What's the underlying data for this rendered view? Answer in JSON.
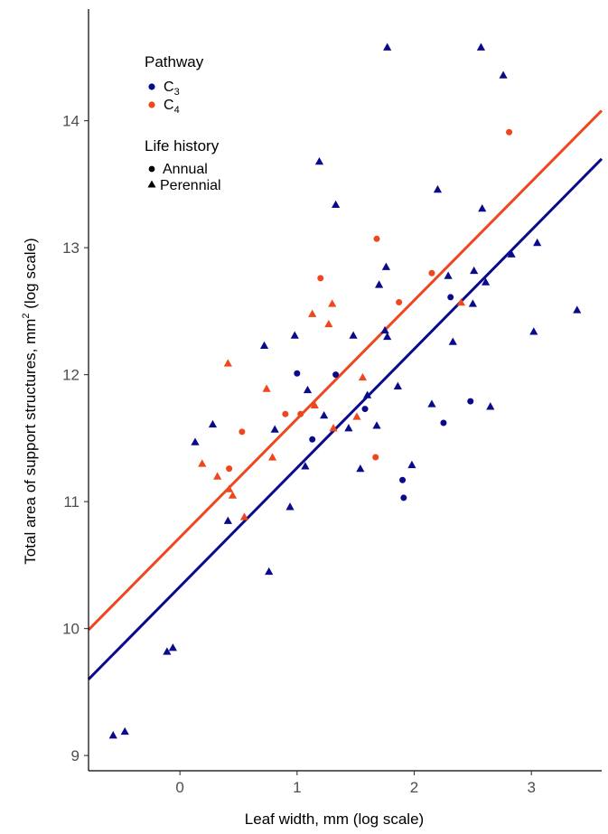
{
  "chart_data": {
    "type": "scatter",
    "xlabel": "Leaf width, mm (log scale)",
    "ylabel_parts": [
      "Total area of support structures, mm",
      "2",
      " (log scale)"
    ],
    "xlim": [
      -0.78,
      3.6
    ],
    "ylim": [
      8.88,
      14.88
    ],
    "xticks": [
      0,
      1,
      2,
      3
    ],
    "yticks": [
      9,
      10,
      11,
      12,
      13,
      14
    ],
    "grid": false,
    "legend_position": "top-left",
    "legend": {
      "pathway_title": "Pathway",
      "pathway": [
        {
          "key": "C3",
          "base": "C",
          "sub": "3",
          "color": "#0a0a8c"
        },
        {
          "key": "C4",
          "base": "C",
          "sub": "4",
          "color": "#f0461e"
        }
      ],
      "life_title": "Life history",
      "life": [
        {
          "key": "annual",
          "label": "Annual",
          "shape": "circle"
        },
        {
          "key": "perennial",
          "label": "Perennial",
          "shape": "triangle"
        }
      ]
    },
    "fits": [
      {
        "pathway": "C3",
        "x": [
          -0.78,
          3.6
        ],
        "y": [
          9.6,
          13.7
        ]
      },
      {
        "pathway": "C4",
        "x": [
          -0.78,
          3.6
        ],
        "y": [
          9.99,
          14.08
        ]
      }
    ],
    "points": [
      {
        "x": -0.57,
        "y": 9.16,
        "pathway": "C3",
        "life": "perennial"
      },
      {
        "x": -0.47,
        "y": 9.19,
        "pathway": "C3",
        "life": "perennial"
      },
      {
        "x": -0.11,
        "y": 9.82,
        "pathway": "C3",
        "life": "perennial"
      },
      {
        "x": -0.06,
        "y": 9.85,
        "pathway": "C3",
        "life": "perennial"
      },
      {
        "x": 0.13,
        "y": 11.47,
        "pathway": "C3",
        "life": "perennial"
      },
      {
        "x": 0.28,
        "y": 11.61,
        "pathway": "C3",
        "life": "perennial"
      },
      {
        "x": 0.41,
        "y": 10.85,
        "pathway": "C3",
        "life": "perennial"
      },
      {
        "x": 0.72,
        "y": 12.23,
        "pathway": "C3",
        "life": "perennial"
      },
      {
        "x": 0.76,
        "y": 10.45,
        "pathway": "C3",
        "life": "perennial"
      },
      {
        "x": 0.81,
        "y": 11.57,
        "pathway": "C3",
        "life": "perennial"
      },
      {
        "x": 0.94,
        "y": 10.96,
        "pathway": "C3",
        "life": "perennial"
      },
      {
        "x": 0.98,
        "y": 12.31,
        "pathway": "C3",
        "life": "perennial"
      },
      {
        "x": 1.0,
        "y": 12.01,
        "pathway": "C3",
        "life": "annual"
      },
      {
        "x": 1.07,
        "y": 11.28,
        "pathway": "C3",
        "life": "perennial"
      },
      {
        "x": 1.09,
        "y": 11.88,
        "pathway": "C3",
        "life": "perennial"
      },
      {
        "x": 1.13,
        "y": 11.49,
        "pathway": "C3",
        "life": "annual"
      },
      {
        "x": 1.19,
        "y": 13.68,
        "pathway": "C3",
        "life": "perennial"
      },
      {
        "x": 1.23,
        "y": 11.68,
        "pathway": "C3",
        "life": "perennial"
      },
      {
        "x": 1.33,
        "y": 13.34,
        "pathway": "C3",
        "life": "perennial"
      },
      {
        "x": 1.33,
        "y": 12.0,
        "pathway": "C3",
        "life": "annual"
      },
      {
        "x": 1.44,
        "y": 11.58,
        "pathway": "C3",
        "life": "perennial"
      },
      {
        "x": 1.48,
        "y": 12.31,
        "pathway": "C3",
        "life": "perennial"
      },
      {
        "x": 1.54,
        "y": 11.26,
        "pathway": "C3",
        "life": "perennial"
      },
      {
        "x": 1.58,
        "y": 11.73,
        "pathway": "C3",
        "life": "annual"
      },
      {
        "x": 1.6,
        "y": 11.84,
        "pathway": "C3",
        "life": "perennial"
      },
      {
        "x": 1.68,
        "y": 11.6,
        "pathway": "C3",
        "life": "perennial"
      },
      {
        "x": 1.7,
        "y": 12.71,
        "pathway": "C3",
        "life": "perennial"
      },
      {
        "x": 1.75,
        "y": 12.35,
        "pathway": "C3",
        "life": "perennial"
      },
      {
        "x": 1.76,
        "y": 12.85,
        "pathway": "C3",
        "life": "perennial"
      },
      {
        "x": 1.77,
        "y": 14.58,
        "pathway": "C3",
        "life": "perennial"
      },
      {
        "x": 1.77,
        "y": 12.3,
        "pathway": "C3",
        "life": "perennial"
      },
      {
        "x": 1.86,
        "y": 11.91,
        "pathway": "C3",
        "life": "perennial"
      },
      {
        "x": 1.9,
        "y": 11.17,
        "pathway": "C3",
        "life": "annual"
      },
      {
        "x": 1.91,
        "y": 11.03,
        "pathway": "C3",
        "life": "annual"
      },
      {
        "x": 1.98,
        "y": 11.29,
        "pathway": "C3",
        "life": "perennial"
      },
      {
        "x": 2.15,
        "y": 11.77,
        "pathway": "C3",
        "life": "perennial"
      },
      {
        "x": 2.2,
        "y": 13.46,
        "pathway": "C3",
        "life": "perennial"
      },
      {
        "x": 2.25,
        "y": 11.62,
        "pathway": "C3",
        "life": "annual"
      },
      {
        "x": 2.29,
        "y": 12.78,
        "pathway": "C3",
        "life": "perennial"
      },
      {
        "x": 2.31,
        "y": 12.61,
        "pathway": "C3",
        "life": "annual"
      },
      {
        "x": 2.33,
        "y": 12.26,
        "pathway": "C3",
        "life": "perennial"
      },
      {
        "x": 2.48,
        "y": 11.79,
        "pathway": "C3",
        "life": "annual"
      },
      {
        "x": 2.5,
        "y": 12.56,
        "pathway": "C3",
        "life": "perennial"
      },
      {
        "x": 2.51,
        "y": 12.82,
        "pathway": "C3",
        "life": "perennial"
      },
      {
        "x": 2.57,
        "y": 14.58,
        "pathway": "C3",
        "life": "perennial"
      },
      {
        "x": 2.58,
        "y": 13.31,
        "pathway": "C3",
        "life": "perennial"
      },
      {
        "x": 2.61,
        "y": 12.73,
        "pathway": "C3",
        "life": "perennial"
      },
      {
        "x": 2.65,
        "y": 11.75,
        "pathway": "C3",
        "life": "perennial"
      },
      {
        "x": 2.76,
        "y": 14.36,
        "pathway": "C3",
        "life": "perennial"
      },
      {
        "x": 2.83,
        "y": 12.95,
        "pathway": "C3",
        "life": "perennial"
      },
      {
        "x": 3.02,
        "y": 12.34,
        "pathway": "C3",
        "life": "perennial"
      },
      {
        "x": 3.05,
        "y": 13.04,
        "pathway": "C3",
        "life": "perennial"
      },
      {
        "x": 3.39,
        "y": 12.51,
        "pathway": "C3",
        "life": "perennial"
      },
      {
        "x": 0.19,
        "y": 11.3,
        "pathway": "C4",
        "life": "perennial"
      },
      {
        "x": 0.32,
        "y": 11.2,
        "pathway": "C4",
        "life": "perennial"
      },
      {
        "x": 0.41,
        "y": 12.09,
        "pathway": "C4",
        "life": "perennial"
      },
      {
        "x": 0.42,
        "y": 11.1,
        "pathway": "C4",
        "life": "perennial"
      },
      {
        "x": 0.42,
        "y": 11.26,
        "pathway": "C4",
        "life": "annual"
      },
      {
        "x": 0.45,
        "y": 11.05,
        "pathway": "C4",
        "life": "perennial"
      },
      {
        "x": 0.53,
        "y": 11.55,
        "pathway": "C4",
        "life": "annual"
      },
      {
        "x": 0.55,
        "y": 10.88,
        "pathway": "C4",
        "life": "perennial"
      },
      {
        "x": 0.74,
        "y": 11.89,
        "pathway": "C4",
        "life": "perennial"
      },
      {
        "x": 0.79,
        "y": 11.35,
        "pathway": "C4",
        "life": "perennial"
      },
      {
        "x": 0.9,
        "y": 11.69,
        "pathway": "C4",
        "life": "annual"
      },
      {
        "x": 1.03,
        "y": 11.69,
        "pathway": "C4",
        "life": "annual"
      },
      {
        "x": 1.13,
        "y": 12.48,
        "pathway": "C4",
        "life": "perennial"
      },
      {
        "x": 1.15,
        "y": 11.76,
        "pathway": "C4",
        "life": "perennial"
      },
      {
        "x": 1.2,
        "y": 12.76,
        "pathway": "C4",
        "life": "annual"
      },
      {
        "x": 1.27,
        "y": 12.4,
        "pathway": "C4",
        "life": "perennial"
      },
      {
        "x": 1.3,
        "y": 12.56,
        "pathway": "C4",
        "life": "perennial"
      },
      {
        "x": 1.31,
        "y": 11.58,
        "pathway": "C4",
        "life": "perennial"
      },
      {
        "x": 1.51,
        "y": 11.67,
        "pathway": "C4",
        "life": "perennial"
      },
      {
        "x": 1.56,
        "y": 11.98,
        "pathway": "C4",
        "life": "perennial"
      },
      {
        "x": 1.67,
        "y": 11.35,
        "pathway": "C4",
        "life": "annual"
      },
      {
        "x": 1.68,
        "y": 13.07,
        "pathway": "C4",
        "life": "annual"
      },
      {
        "x": 1.87,
        "y": 12.57,
        "pathway": "C4",
        "life": "annual"
      },
      {
        "x": 2.15,
        "y": 12.8,
        "pathway": "C4",
        "life": "annual"
      },
      {
        "x": 2.4,
        "y": 12.57,
        "pathway": "C4",
        "life": "perennial"
      },
      {
        "x": 2.81,
        "y": 13.91,
        "pathway": "C4",
        "life": "annual"
      }
    ]
  }
}
